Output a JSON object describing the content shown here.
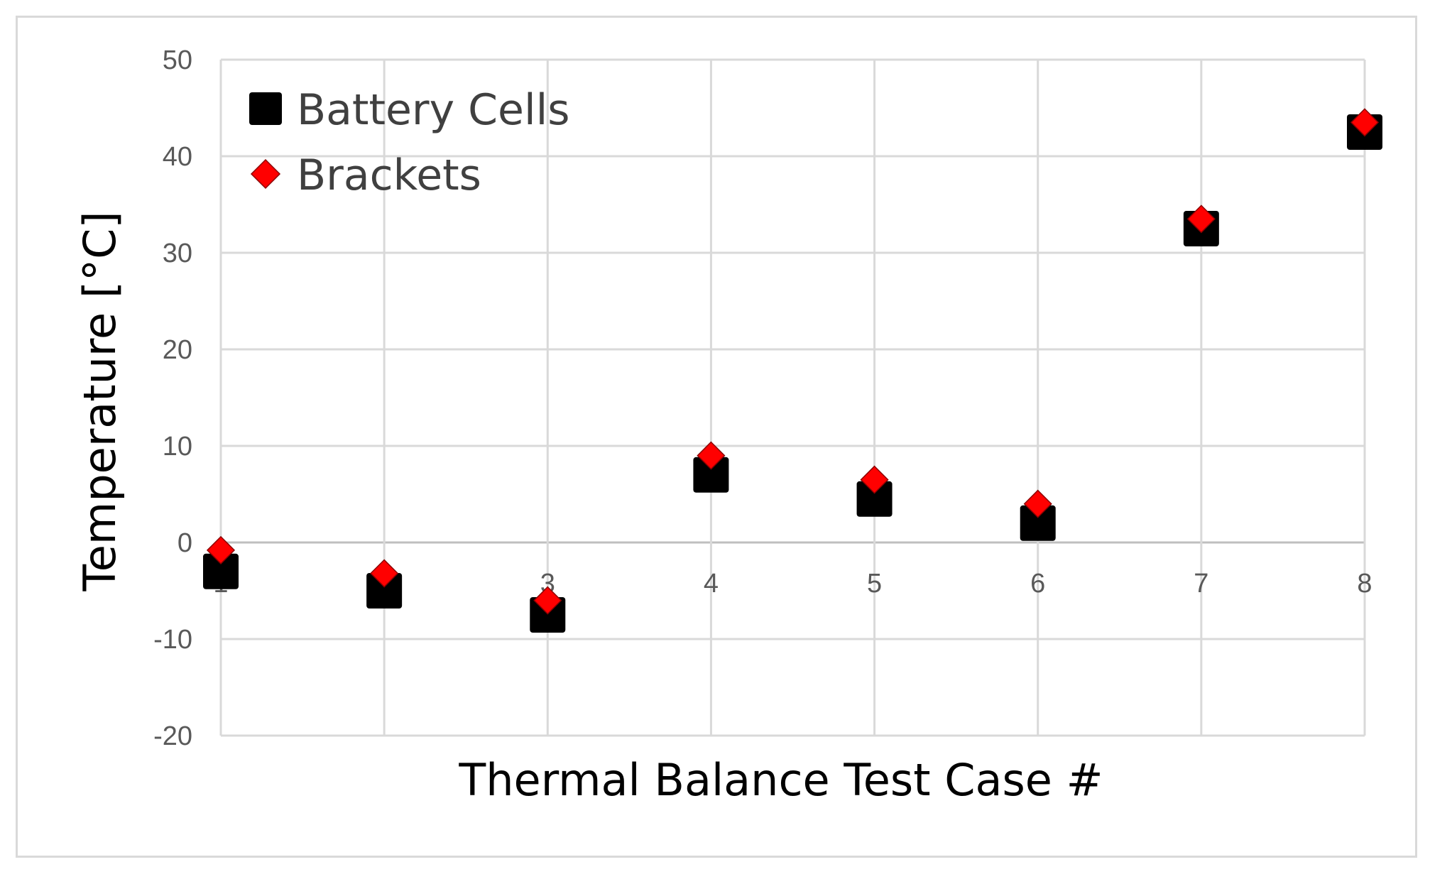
{
  "chart_data": {
    "type": "scatter",
    "title": "",
    "xlabel": "Thermal Balance Test Case #",
    "ylabel": "Temperature  [°C]",
    "ylim": [
      -20,
      50
    ],
    "xlim": [
      1,
      8
    ],
    "y_ticks": [
      -20,
      -10,
      0,
      10,
      20,
      30,
      40,
      50
    ],
    "x_ticks": [
      1,
      2,
      3,
      4,
      5,
      6,
      7,
      8
    ],
    "x_tick_labels": [
      "1",
      "2",
      "3",
      "4",
      "5",
      "6",
      "7",
      "8"
    ],
    "grid": true,
    "legend_position": "top-left",
    "series": [
      {
        "name": "Battery Cells",
        "marker": "square",
        "color": "#000000",
        "x": [
          1,
          2,
          3,
          4,
          5,
          6,
          7,
          8
        ],
        "y": [
          -3,
          -5,
          -7.5,
          7,
          4.5,
          2,
          32.5,
          42.5
        ]
      },
      {
        "name": "Brackets",
        "marker": "diamond",
        "color": "#ff0000",
        "x": [
          1,
          2,
          3,
          4,
          5,
          6,
          7,
          8
        ],
        "y": [
          -0.8,
          -3.2,
          -6,
          9,
          6.5,
          4,
          33.5,
          43.5
        ]
      }
    ]
  }
}
